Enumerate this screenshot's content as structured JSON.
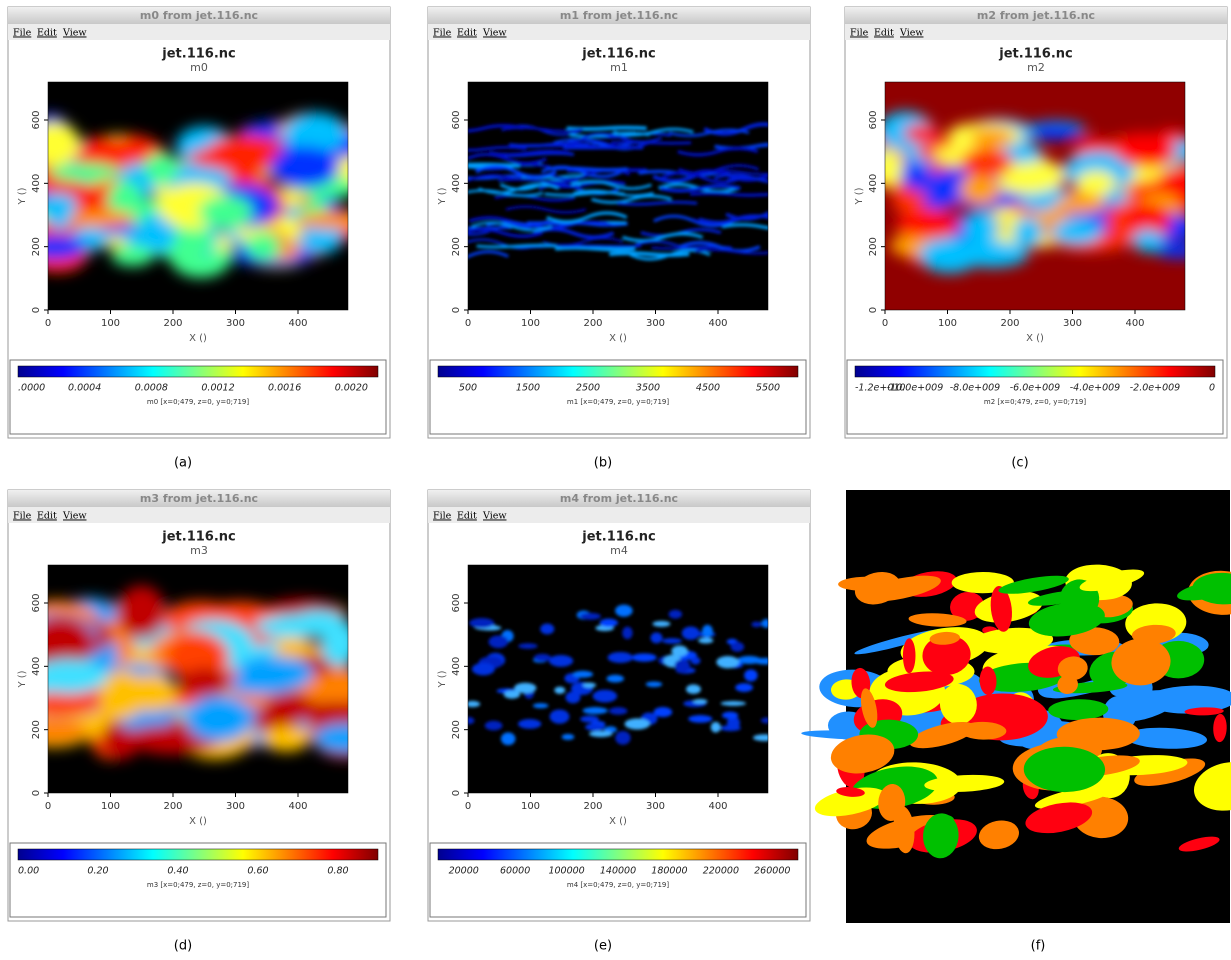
{
  "panels": [
    {
      "window_title": "m0 from jet.116.nc",
      "menu": [
        "File",
        "Edit",
        "View"
      ],
      "plot_title": "jet.116.nc",
      "subtitle": "m0",
      "x_label": "X ()",
      "y_label": "Y ()",
      "x_ticks": [
        "0",
        "100",
        "200",
        "300",
        "400"
      ],
      "y_ticks": [
        "0",
        "200",
        "400",
        "600"
      ],
      "colorbar_ticks": [
        ".0000",
        "0.0004",
        "0.0008",
        "0.0012",
        "0.0016",
        "0.0020"
      ],
      "colorbar_label": "m0 [x=0;479, z=0, y=0;719]",
      "caption": "(a)"
    },
    {
      "window_title": "m1 from jet.116.nc",
      "menu": [
        "File",
        "Edit",
        "View"
      ],
      "plot_title": "jet.116.nc",
      "subtitle": "m1",
      "x_label": "X ()",
      "y_label": "Y ()",
      "x_ticks": [
        "0",
        "100",
        "200",
        "300",
        "400"
      ],
      "y_ticks": [
        "0",
        "200",
        "400",
        "600"
      ],
      "colorbar_ticks": [
        "500",
        "1500",
        "2500",
        "3500",
        "4500",
        "5500"
      ],
      "colorbar_label": "m1 [x=0;479, z=0, y=0;719]",
      "caption": "(b)"
    },
    {
      "window_title": "m2 from jet.116.nc",
      "menu": [
        "File",
        "Edit",
        "View"
      ],
      "plot_title": "jet.116.nc",
      "subtitle": "m2",
      "x_label": "X ()",
      "y_label": "Y ()",
      "x_ticks": [
        "0",
        "100",
        "200",
        "300",
        "400"
      ],
      "y_ticks": [
        "0",
        "200",
        "400",
        "600"
      ],
      "colorbar_ticks": [
        "-1.2e+010",
        "-10.0e+009",
        "-8.0e+009",
        "-6.0e+009",
        "-4.0e+009",
        "-2.0e+009",
        "0"
      ],
      "colorbar_label": "m2 [x=0;479, z=0, y=0;719]",
      "caption": "(c)"
    },
    {
      "window_title": "m3 from jet.116.nc",
      "menu": [
        "File",
        "Edit",
        "View"
      ],
      "plot_title": "jet.116.nc",
      "subtitle": "m3",
      "x_label": "X ()",
      "y_label": "Y ()",
      "x_ticks": [
        "0",
        "100",
        "200",
        "300",
        "400"
      ],
      "y_ticks": [
        "0",
        "200",
        "400",
        "600"
      ],
      "colorbar_ticks": [
        "0.00",
        "0.20",
        "0.40",
        "0.60",
        "0.80"
      ],
      "colorbar_label": "m3 [x=0;479, z=0, y=0;719]",
      "caption": "(d)"
    },
    {
      "window_title": "m4 from jet.116.nc",
      "menu": [
        "File",
        "Edit",
        "View"
      ],
      "plot_title": "jet.116.nc",
      "subtitle": "m4",
      "x_label": "X ()",
      "y_label": "Y ()",
      "x_ticks": [
        "0",
        "100",
        "200",
        "300",
        "400"
      ],
      "y_ticks": [
        "0",
        "200",
        "400",
        "600"
      ],
      "colorbar_ticks": [
        "20000",
        "60000",
        "100000",
        "140000",
        "180000",
        "220000",
        "260000"
      ],
      "colorbar_label": "m4 [x=0;479, z=0, y=0;719]",
      "caption": "(e)"
    },
    {
      "caption": "(f)"
    }
  ]
}
